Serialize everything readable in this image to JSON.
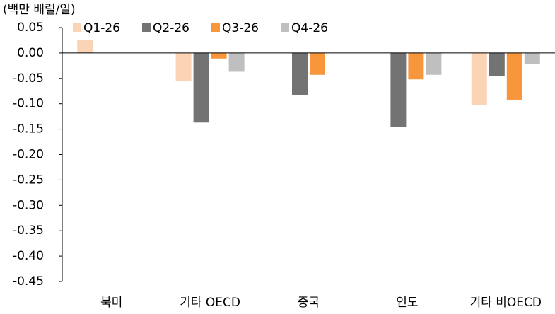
{
  "chart_data": {
    "type": "bar",
    "y_axis_label": "(백만 배럴/일)",
    "categories": [
      "북미",
      "기타 OECD",
      "중국",
      "인도",
      "기타 비OECD"
    ],
    "series": [
      {
        "name": "Q1-26",
        "color": "#fbd3b5",
        "values": [
          0.025,
          -0.056,
          null,
          null,
          -0.103
        ]
      },
      {
        "name": "Q2-26",
        "color": "#737373",
        "values": [
          null,
          -0.137,
          -0.083,
          -0.146,
          -0.046
        ]
      },
      {
        "name": "Q3-26",
        "color": "#f7963b",
        "values": [
          null,
          -0.011,
          -0.043,
          -0.052,
          -0.092
        ]
      },
      {
        "name": "Q4-26",
        "color": "#bfbfbf",
        "values": [
          null,
          -0.037,
          null,
          -0.043,
          -0.022
        ]
      }
    ],
    "ylim": [
      -0.45,
      0.05
    ],
    "yticks": [
      0.05,
      {
        "value": 0,
        "label": "0.00"
      },
      -0.05,
      {
        "value": -0.1,
        "label": "-0.10"
      },
      -0.15,
      {
        "value": -0.2,
        "label": "-0.20"
      },
      -0.25,
      {
        "value": -0.3,
        "label": "-0.30"
      },
      -0.35,
      {
        "value": -0.4,
        "label": "-0.40"
      },
      -0.45
    ],
    "legend": "top"
  }
}
